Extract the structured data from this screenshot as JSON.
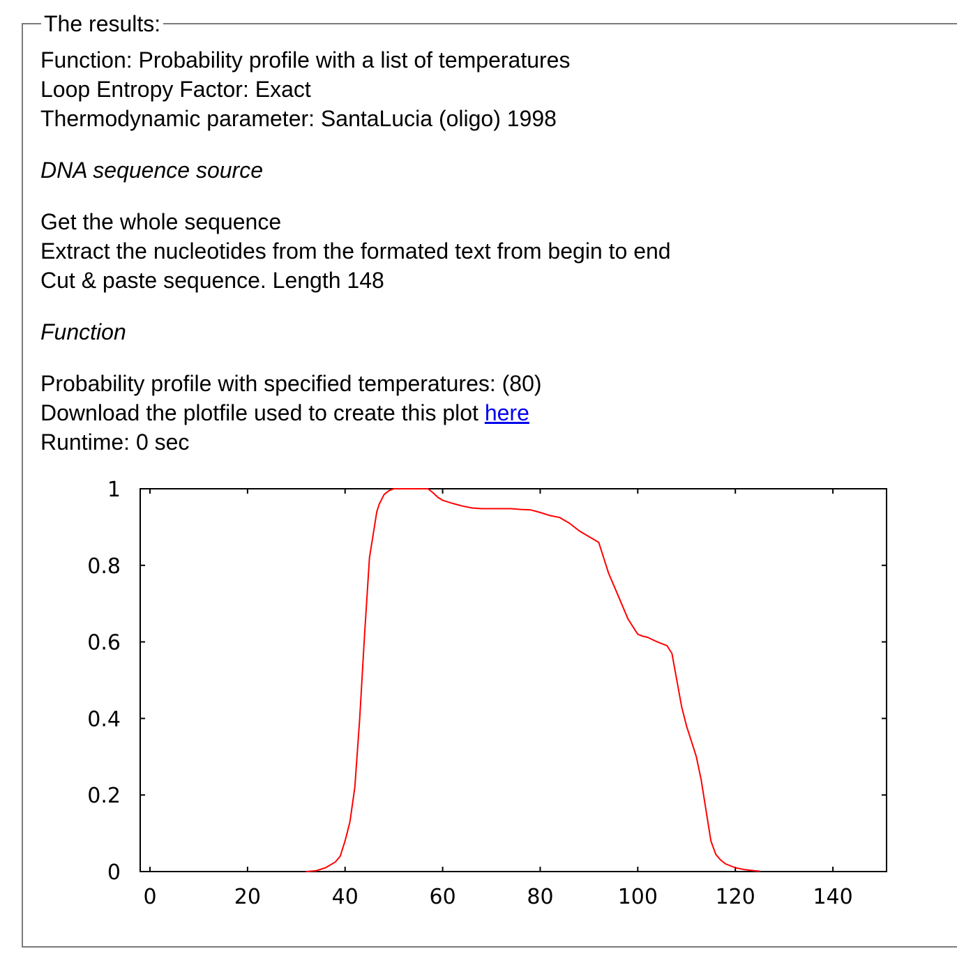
{
  "box": {
    "legend": "The results:"
  },
  "summary": {
    "function_line": "Function: Probability profile with a list of temperatures",
    "loop_entropy_line": "Loop Entropy Factor: Exact",
    "thermo_line": "Thermodynamic parameter: SantaLucia (oligo) 1998"
  },
  "source_section": {
    "heading": "DNA sequence source",
    "lines": [
      "Get the whole sequence",
      "Extract the nucleotides from the formated text from begin to end",
      "Cut & paste sequence. Length 148"
    ]
  },
  "function_section": {
    "heading": "Function",
    "profile_line": "Probability profile with specified temperatures: (80)",
    "download_prefix": "Download the plotfile used to create this plot ",
    "download_link": "here ",
    "runtime_line": "Runtime: 0 sec"
  },
  "chart_data": {
    "type": "line",
    "title": "",
    "xlabel": "",
    "ylabel": "",
    "xlim": [
      -2,
      151
    ],
    "ylim": [
      0,
      1
    ],
    "x_ticks": [
      0,
      20,
      40,
      60,
      80,
      100,
      120,
      140
    ],
    "x_tick_labels": [
      "0",
      "20",
      "40",
      "60",
      "80",
      "100",
      "120",
      "140"
    ],
    "y_ticks": [
      0,
      0.2,
      0.4,
      0.6,
      0.8,
      1
    ],
    "y_tick_labels": [
      "0",
      "0.2",
      "0.4",
      "0.6",
      "0.8",
      "1"
    ],
    "grid": false,
    "legend": "none",
    "series_color": "#ff0000",
    "series": [
      {
        "x": [
          32,
          34,
          36,
          38,
          39,
          40,
          41,
          42,
          43,
          44,
          45,
          46,
          46.5,
          47,
          48,
          49,
          50,
          52,
          54,
          55,
          56,
          57,
          58,
          59,
          60,
          62,
          64,
          66,
          68,
          70,
          72,
          74,
          76,
          78,
          80,
          82,
          84,
          86,
          88,
          90,
          92,
          94,
          96,
          98,
          100,
          101,
          102,
          104,
          106,
          107,
          108,
          109,
          110,
          111,
          112,
          113,
          114,
          115,
          116,
          117,
          118,
          120,
          122,
          124,
          125
        ],
        "y": [
          0,
          0.002,
          0.01,
          0.025,
          0.04,
          0.08,
          0.13,
          0.22,
          0.4,
          0.62,
          0.82,
          0.9,
          0.94,
          0.96,
          0.985,
          0.995,
          1,
          1,
          1,
          1,
          1,
          1,
          0.99,
          0.978,
          0.97,
          0.962,
          0.955,
          0.95,
          0.948,
          0.948,
          0.948,
          0.948,
          0.946,
          0.945,
          0.938,
          0.93,
          0.925,
          0.91,
          0.89,
          0.875,
          0.86,
          0.78,
          0.72,
          0.66,
          0.62,
          0.615,
          0.612,
          0.6,
          0.59,
          0.57,
          0.5,
          0.43,
          0.38,
          0.34,
          0.3,
          0.24,
          0.16,
          0.08,
          0.045,
          0.03,
          0.02,
          0.01,
          0.005,
          0.002,
          0.001
        ]
      }
    ]
  }
}
